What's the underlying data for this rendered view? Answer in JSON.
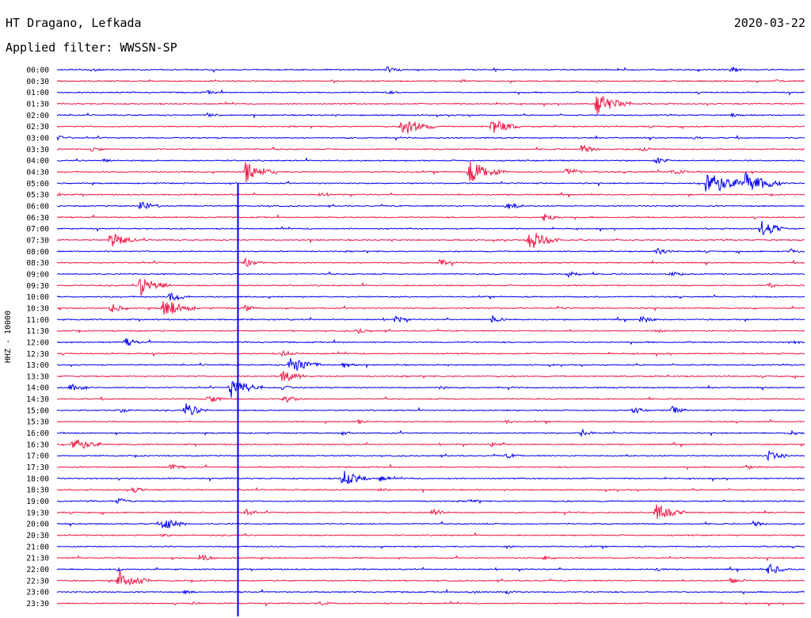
{
  "header": {
    "station": "HT Dragano, Lefkada",
    "date": "2020-03-22",
    "filter": "Applied filter: WWSSN-SP"
  },
  "axis": {
    "ylabel": "HHZ - 10000"
  },
  "colors": {
    "even_trace": "#0000ee",
    "odd_trace": "#ee1744"
  },
  "chart_data": {
    "type": "line",
    "title": "HT Dragano, Lefkada",
    "ylabel": "HHZ - 10000",
    "trace_interval_minutes": 30,
    "y_ticks": [
      "00:00",
      "00:30",
      "01:00",
      "01:30",
      "02:00",
      "02:30",
      "03:00",
      "03:30",
      "04:00",
      "04:30",
      "05:00",
      "05:30",
      "06:00",
      "06:30",
      "07:00",
      "07:30",
      "08:00",
      "08:30",
      "09:00",
      "09:30",
      "10:00",
      "10:30",
      "11:00",
      "11:30",
      "12:00",
      "12:30",
      "13:00",
      "13:30",
      "14:00",
      "14:30",
      "15:00",
      "15:30",
      "16:00",
      "16:30",
      "17:00",
      "17:30",
      "18:00",
      "18:30",
      "19:00",
      "19:30",
      "20:00",
      "20:30",
      "21:00",
      "21:30",
      "22:00",
      "22:30",
      "23:00",
      "23:30"
    ],
    "series": [
      {
        "values": [
          [
            0.045,
            0.6
          ],
          [
            0.44,
            1.0
          ],
          [
            0.9,
            0.9
          ]
        ]
      },
      {
        "values": [
          [
            0.54,
            0.5
          ],
          [
            0.96,
            0.4
          ]
        ]
      },
      {
        "values": [
          [
            0.2,
            0.5
          ],
          [
            0.44,
            0.5
          ]
        ]
      },
      {
        "values": [
          [
            0.72,
            4.0
          ]
        ]
      },
      {
        "values": [
          [
            0.2,
            0.8
          ],
          [
            0.9,
            0.6
          ]
        ]
      },
      {
        "values": [
          [
            0.46,
            3.6
          ],
          [
            0.58,
            3.0
          ]
        ]
      },
      {
        "values": [
          [
            0.0,
            0.8
          ],
          [
            0.85,
            0.4
          ]
        ]
      },
      {
        "values": [
          [
            0.045,
            0.8
          ],
          [
            0.7,
            1.6
          ],
          [
            0.78,
            0.8
          ]
        ]
      },
      {
        "values": [
          [
            0.06,
            0.6
          ],
          [
            0.8,
            1.2
          ]
        ]
      },
      {
        "values": [
          [
            0.25,
            3.6
          ],
          [
            0.55,
            4.2
          ],
          [
            0.68,
            1.6
          ],
          [
            0.82,
            1.4
          ]
        ]
      },
      {
        "values": [
          [
            0.866,
            5.0
          ],
          [
            0.92,
            4.2
          ]
        ]
      },
      {
        "values": [
          [
            0.0,
            0.5
          ],
          [
            0.35,
            0.6
          ]
        ]
      },
      {
        "values": [
          [
            0.11,
            1.8
          ],
          [
            0.6,
            1.4
          ]
        ]
      },
      {
        "values": [
          [
            0.65,
            1.6
          ]
        ]
      },
      {
        "values": [
          [
            0.94,
            3.0
          ]
        ]
      },
      {
        "values": [
          [
            0.07,
            3.0
          ],
          [
            0.63,
            3.6
          ]
        ]
      },
      {
        "values": [
          [
            0.8,
            1.2
          ],
          [
            0.98,
            0.8
          ]
        ]
      },
      {
        "values": [
          [
            0.25,
            1.4
          ],
          [
            0.51,
            1.2
          ]
        ]
      },
      {
        "values": [
          [
            0.68,
            1.4
          ],
          [
            0.82,
            0.8
          ]
        ]
      },
      {
        "values": [
          [
            0.11,
            3.6
          ],
          [
            0.95,
            0.8
          ]
        ]
      },
      {
        "values": [
          [
            0.15,
            2.0
          ]
        ]
      },
      {
        "values": [
          [
            0.07,
            1.6
          ],
          [
            0.14,
            3.6
          ],
          [
            0.25,
            1.0
          ],
          [
            0.67,
            0.6
          ]
        ]
      },
      {
        "values": [
          [
            0.45,
            1.2
          ],
          [
            0.58,
            1.2
          ],
          [
            0.78,
            1.2
          ]
        ]
      },
      {
        "values": [
          [
            0.4,
            1.0
          ],
          [
            0.8,
            0.6
          ]
        ]
      },
      {
        "values": [
          [
            0.09,
            1.4
          ],
          [
            0.98,
            0.8
          ]
        ]
      },
      {
        "values": [
          [
            0.3,
            1.0
          ]
        ]
      },
      {
        "values": [
          [
            0.31,
            3.4
          ],
          [
            0.38,
            1.2
          ]
        ]
      },
      {
        "values": [
          [
            0.3,
            2.4
          ]
        ]
      },
      {
        "values": [
          [
            0.017,
            1.6
          ],
          [
            0.23,
            3.6
          ],
          [
            0.3,
            0.8
          ],
          [
            0.51,
            0.6
          ]
        ]
      },
      {
        "values": [
          [
            0.2,
            1.4
          ],
          [
            0.3,
            1.6
          ]
        ]
      },
      {
        "values": [
          [
            0.08,
            1.0
          ],
          [
            0.17,
            2.4
          ],
          [
            0.77,
            1.0
          ],
          [
            0.82,
            1.4
          ]
        ]
      },
      {
        "values": [
          [
            0.4,
            0.6
          ],
          [
            0.6,
            0.6
          ]
        ]
      },
      {
        "values": [
          [
            0.38,
            0.6
          ],
          [
            0.7,
            1.2
          ],
          [
            0.98,
            0.8
          ]
        ]
      },
      {
        "values": [
          [
            0.02,
            2.8
          ],
          [
            0.58,
            0.8
          ]
        ]
      },
      {
        "values": [
          [
            0.6,
            0.8
          ],
          [
            0.95,
            1.8
          ]
        ]
      },
      {
        "values": [
          [
            0.15,
            1.0
          ],
          [
            0.92,
            0.8
          ]
        ]
      },
      {
        "values": [
          [
            0.38,
            3.0
          ],
          [
            0.43,
            1.0
          ]
        ]
      },
      {
        "values": [
          [
            0.1,
            1.0
          ],
          [
            0.43,
            0.6
          ]
        ]
      },
      {
        "values": [
          [
            0.08,
            1.2
          ],
          [
            0.55,
            0.6
          ]
        ]
      },
      {
        "values": [
          [
            0.25,
            1.2
          ],
          [
            0.5,
            1.4
          ],
          [
            0.8,
            3.0
          ]
        ]
      },
      {
        "values": [
          [
            0.14,
            2.4
          ],
          [
            0.93,
            1.0
          ]
        ]
      },
      {
        "values": [
          [
            0.14,
            0.6
          ]
        ]
      },
      {
        "values": [
          [
            0.6,
            0.4
          ]
        ]
      },
      {
        "values": [
          [
            0.19,
            1.4
          ],
          [
            0.65,
            0.8
          ]
        ]
      },
      {
        "values": [
          [
            0.08,
            0.6
          ],
          [
            0.8,
            0.6
          ],
          [
            0.95,
            2.0
          ]
        ]
      },
      {
        "values": [
          [
            0.08,
            3.6
          ],
          [
            0.9,
            1.2
          ]
        ]
      },
      {
        "values": [
          [
            0.55,
            0.8
          ],
          [
            0.6,
            0.8
          ],
          [
            0.17,
            0.6
          ]
        ]
      },
      {
        "values": [
          [
            0.18,
            0.4
          ],
          [
            0.35,
            0.8
          ]
        ]
      }
    ],
    "spike": {
      "x": 0.242
    }
  }
}
